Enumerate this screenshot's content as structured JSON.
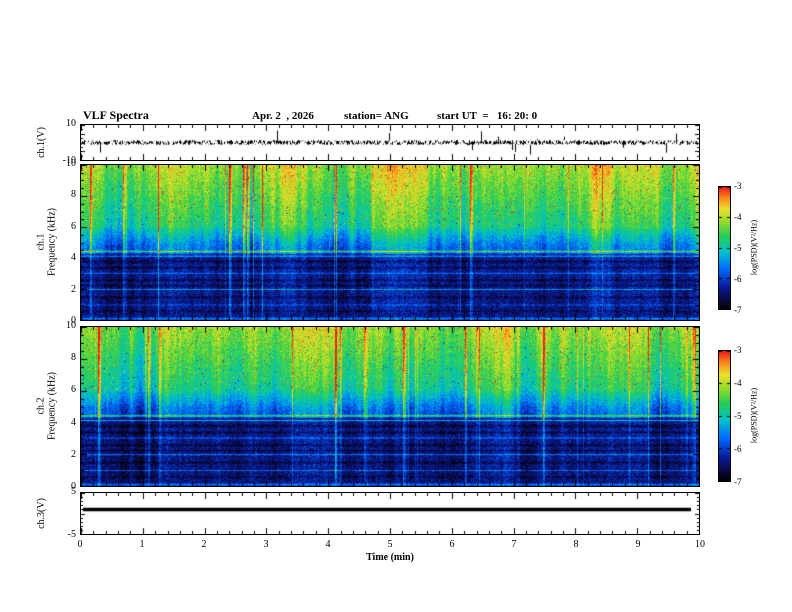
{
  "header": {
    "title": "VLF Spectra",
    "date": "Apr. 2  , 2026",
    "station": "station= ANG",
    "start_ut": "start UT  =   16: 20: 0"
  },
  "chart_data": {
    "type": "heatmap",
    "title": "VLF Spectra",
    "x_axis": {
      "label": "Time (min)",
      "range": [
        0,
        10
      ],
      "major_ticks": [
        0,
        1,
        2,
        3,
        4,
        5,
        6,
        7,
        8,
        9,
        10
      ],
      "minor_tick_step": 0.2
    },
    "colorbar": {
      "label": "log(PSD)(V²/Hz)",
      "tick_values": [
        -3,
        -4,
        -5,
        -6,
        -7
      ],
      "range": [
        -7,
        -3
      ],
      "orientation": "vertical",
      "top_value": -3,
      "bottom_value": -7
    },
    "colormap_stops": [
      [
        0.0,
        [
          0,
          0,
          0
        ]
      ],
      [
        0.07,
        [
          8,
          8,
          55
        ]
      ],
      [
        0.18,
        [
          10,
          25,
          150
        ]
      ],
      [
        0.33,
        [
          0,
          105,
          255
        ]
      ],
      [
        0.47,
        [
          0,
          195,
          205
        ]
      ],
      [
        0.6,
        [
          35,
          205,
          85
        ]
      ],
      [
        0.72,
        [
          150,
          220,
          40
        ]
      ],
      [
        0.82,
        [
          235,
          225,
          45
        ]
      ],
      [
        0.91,
        [
          250,
          140,
          30
        ]
      ],
      [
        1.0,
        [
          240,
          30,
          25
        ]
      ]
    ],
    "panels": [
      {
        "id": "wave1",
        "kind": "line",
        "ylabel": "ch.1(V)",
        "ylim": [
          -10,
          10
        ],
        "ytick_labels": [
          {
            "v": 10,
            "t": "10"
          },
          {
            "v": -10,
            "t": "-10"
          }
        ],
        "y_major_ticks": [
          -10,
          -5,
          0,
          5,
          10
        ],
        "y_minor_step": 2.5,
        "seed": 911,
        "noise_amp_V": 1.4,
        "spike_amp_V": 7,
        "description": "broadband receiver noise centered on 0 V, ~±2 V, sporadic spikes to ±8 V across 0–10 min"
      },
      {
        "id": "spec1",
        "kind": "heatmap",
        "ylabel_lines": [
          "ch.1",
          "Frequency (kHz)"
        ],
        "ylim": [
          0,
          10
        ],
        "ytick_labels": [
          {
            "v": 0,
            "t": "0"
          },
          {
            "v": 2,
            "t": "2"
          },
          {
            "v": 4,
            "t": "4"
          },
          {
            "v": 6,
            "t": "6"
          },
          {
            "v": 8,
            "t": "8"
          },
          {
            "v": 10,
            "t": "10"
          }
        ],
        "y_major_ticks": [
          0,
          2,
          4,
          6,
          8,
          10
        ],
        "y_minor_step": 0.5,
        "seed": 42,
        "noise": 0.17,
        "bright_bands": [
          {
            "f": 4.45,
            "w": 0.09,
            "a": 0.36
          },
          {
            "f": 4.15,
            "w": 0.07,
            "a": 0.28
          },
          {
            "f": 3.05,
            "w": 0.06,
            "a": 0.2
          },
          {
            "f": 2.0,
            "w": 0.06,
            "a": 0.24
          },
          {
            "f": 1.0,
            "w": 0.05,
            "a": 0.2
          },
          {
            "f": 0.12,
            "w": 0.12,
            "a": 0.22
          }
        ],
        "dark_bands": [
          {
            "f": 3.8,
            "w": 0.16,
            "a": 0.09
          },
          {
            "f": 3.4,
            "w": 0.12,
            "a": 0.09
          },
          {
            "f": 2.6,
            "w": 0.12,
            "a": 0.09
          },
          {
            "f": 2.25,
            "w": 0.1,
            "a": 0.08
          },
          {
            "f": 1.5,
            "w": 0.12,
            "a": 0.08
          },
          {
            "f": 0.6,
            "w": 0.1,
            "a": 0.07
          }
        ],
        "description": "PSD ≈ -3.5…-4.5 (green/yellow) above 6 kHz with vertical burst striations (sferics, some reaching red ≈ -3), ≈ -5 (blue/cyan) 4–6 kHz, ≈ -6.5 (dark blue/black) below 4 kHz with narrow horizontal emission lines near 4.4, 4.15, 3.0, 2.0 and 1.0 kHz"
      },
      {
        "id": "spec2",
        "kind": "heatmap",
        "ylabel_lines": [
          "ch.2",
          "Frequency (kHz)"
        ],
        "ylim": [
          0,
          10
        ],
        "ytick_labels": [
          {
            "v": 0,
            "t": "0"
          },
          {
            "v": 2,
            "t": "2"
          },
          {
            "v": 4,
            "t": "4"
          },
          {
            "v": 6,
            "t": "6"
          },
          {
            "v": 8,
            "t": "8"
          },
          {
            "v": 10,
            "t": "10"
          }
        ],
        "y_major_ticks": [
          0,
          2,
          4,
          6,
          8,
          10
        ],
        "y_minor_step": 0.5,
        "seed": 1337,
        "noise": 0.17,
        "bright_bands": [
          {
            "f": 4.45,
            "w": 0.09,
            "a": 0.36
          },
          {
            "f": 4.15,
            "w": 0.07,
            "a": 0.28
          },
          {
            "f": 3.05,
            "w": 0.06,
            "a": 0.2
          },
          {
            "f": 2.0,
            "w": 0.06,
            "a": 0.24
          },
          {
            "f": 1.0,
            "w": 0.05,
            "a": 0.2
          },
          {
            "f": 0.12,
            "w": 0.12,
            "a": 0.22
          }
        ],
        "dark_bands": [
          {
            "f": 3.8,
            "w": 0.16,
            "a": 0.09
          },
          {
            "f": 3.4,
            "w": 0.12,
            "a": 0.09
          },
          {
            "f": 2.6,
            "w": 0.12,
            "a": 0.09
          },
          {
            "f": 2.25,
            "w": 0.1,
            "a": 0.08
          },
          {
            "f": 1.5,
            "w": 0.12,
            "a": 0.08
          },
          {
            "f": 0.6,
            "w": 0.1,
            "a": 0.07
          }
        ],
        "description": "same structure as ch.1 spectrogram: strong mottled power above 6 kHz with vertical striations, weak banded power below 4 kHz"
      },
      {
        "id": "wave3",
        "kind": "flat",
        "ylabel": "ch.3(V)",
        "ylim": [
          -5,
          5
        ],
        "ytick_labels": [
          {
            "v": 5,
            "t": "5"
          },
          {
            "v": -5,
            "t": "-5"
          }
        ],
        "y_major_ticks": [
          -5,
          0,
          5
        ],
        "y_minor_step": 1,
        "value": 1,
        "description": "constant flat trace at ≈ +1 V for the full 10 min"
      }
    ]
  }
}
